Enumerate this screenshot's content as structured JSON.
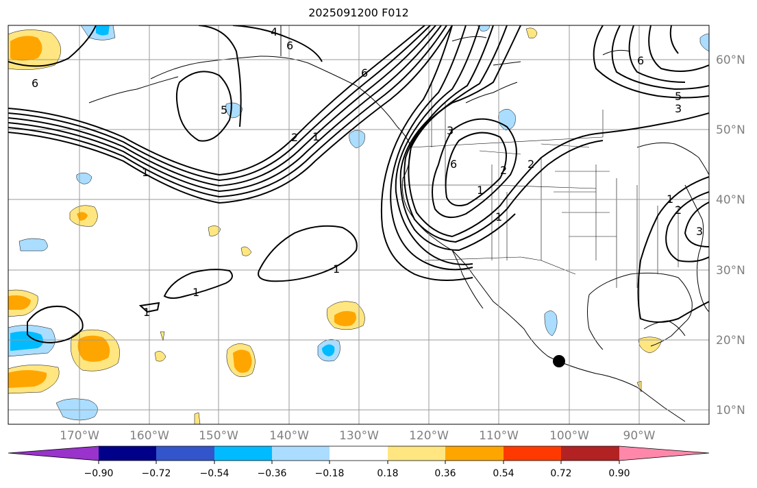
{
  "title": "2025091200 F012",
  "lon_labels": [
    "170°W",
    "160°W",
    "150°W",
    "140°W",
    "130°W",
    "120°W",
    "110°W",
    "100°W",
    "90°W"
  ],
  "lat_labels": [
    "60°N",
    "50°N",
    "40°N",
    "30°N",
    "20°N",
    "10°N"
  ],
  "contour_labels": [
    "4",
    "6",
    "6",
    "5",
    "6",
    "2",
    "1",
    "1",
    "1",
    "1",
    "1",
    "1",
    "3",
    "6",
    "2",
    "1",
    "2",
    "6",
    "5",
    "3",
    "1",
    "2",
    "3"
  ],
  "colorbar": {
    "ticks": [
      "−0.90",
      "−0.72",
      "−0.54",
      "−0.36",
      "−0.18",
      "0.18",
      "0.36",
      "0.54",
      "0.72",
      "0.90"
    ],
    "colors": [
      "#9933cc",
      "#000088",
      "#3355cc",
      "#00bbff",
      "#aaddff",
      "#ffffff",
      "#ffe680",
      "#ffa500",
      "#ff3a00",
      "#b22222",
      "#ff88aa"
    ]
  },
  "marker": "black-dot"
}
